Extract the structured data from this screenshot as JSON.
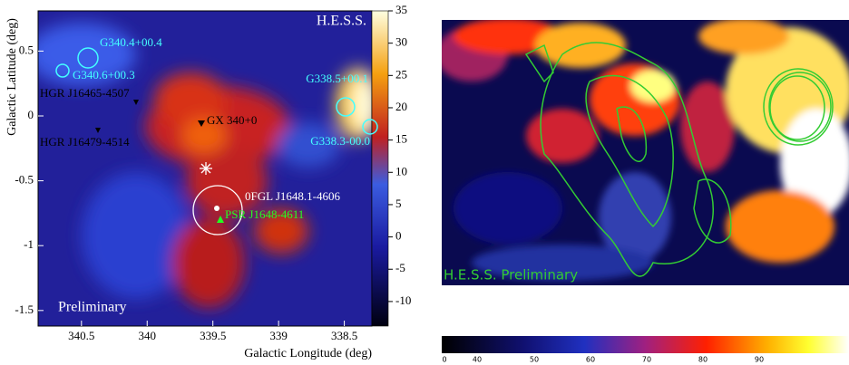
{
  "chart_data": [
    {
      "type": "heatmap",
      "title": "H.E.S.S.",
      "annotation": "Preliminary",
      "x_label": "Galactic Longitude (deg)",
      "y_label": "Galactic Latitude (deg)",
      "xlim": [
        340.83,
        338.29
      ],
      "xticks": [
        340.5,
        340,
        339.5,
        339,
        338.5
      ],
      "ylim": [
        -1.62,
        0.81
      ],
      "yticks": [
        0.5,
        0,
        -0.5,
        -1,
        -1.5
      ],
      "colorbar_lim": [
        -13.8,
        35
      ],
      "colorbar_ticks": [
        35,
        30,
        25,
        20,
        15,
        10,
        5,
        0,
        -5,
        -10
      ],
      "sources": [
        "G340.4+00.4",
        "G340.6+00.3",
        "HGR J16465-4507",
        "GX 340+0",
        "G338.5+00.1",
        "HGR J16479-4514",
        "G338.3-00.0",
        "0FGL J1648.1-4606",
        "PSR J1648-4611"
      ]
    },
    {
      "type": "heatmap",
      "annotation": "H.E.S.S. Preliminary",
      "colorbar_ticks": [
        "0",
        "40",
        "50",
        "60",
        "70",
        "80",
        "90"
      ]
    }
  ]
}
